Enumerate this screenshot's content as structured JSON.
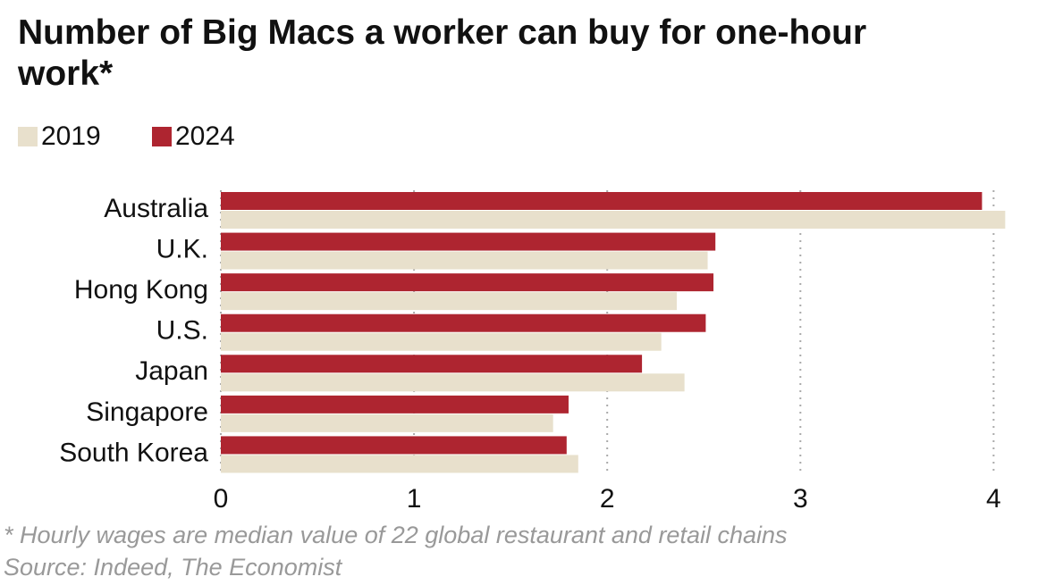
{
  "chart_data": {
    "type": "hbar",
    "title": "Number of Big Macs a worker can buy for one-hour work*",
    "categories": [
      "Australia",
      "U.K.",
      "Hong Kong",
      "U.S.",
      "Japan",
      "Singapore",
      "South Korea"
    ],
    "series": [
      {
        "name": "2019",
        "color": "#e8e0cc",
        "values": [
          4.06,
          2.52,
          2.36,
          2.28,
          2.4,
          1.72,
          1.85
        ]
      },
      {
        "name": "2024",
        "color": "#ae2530",
        "values": [
          3.94,
          2.56,
          2.55,
          2.51,
          2.18,
          1.8,
          1.79
        ]
      }
    ],
    "xlim": [
      0,
      4.1
    ],
    "xticks": [
      0,
      1,
      2,
      3,
      4
    ],
    "grid": true,
    "note": "* Hourly wages are median value of 22 global restaurant and retail chains",
    "source": "Source: Indeed, The Economist"
  }
}
